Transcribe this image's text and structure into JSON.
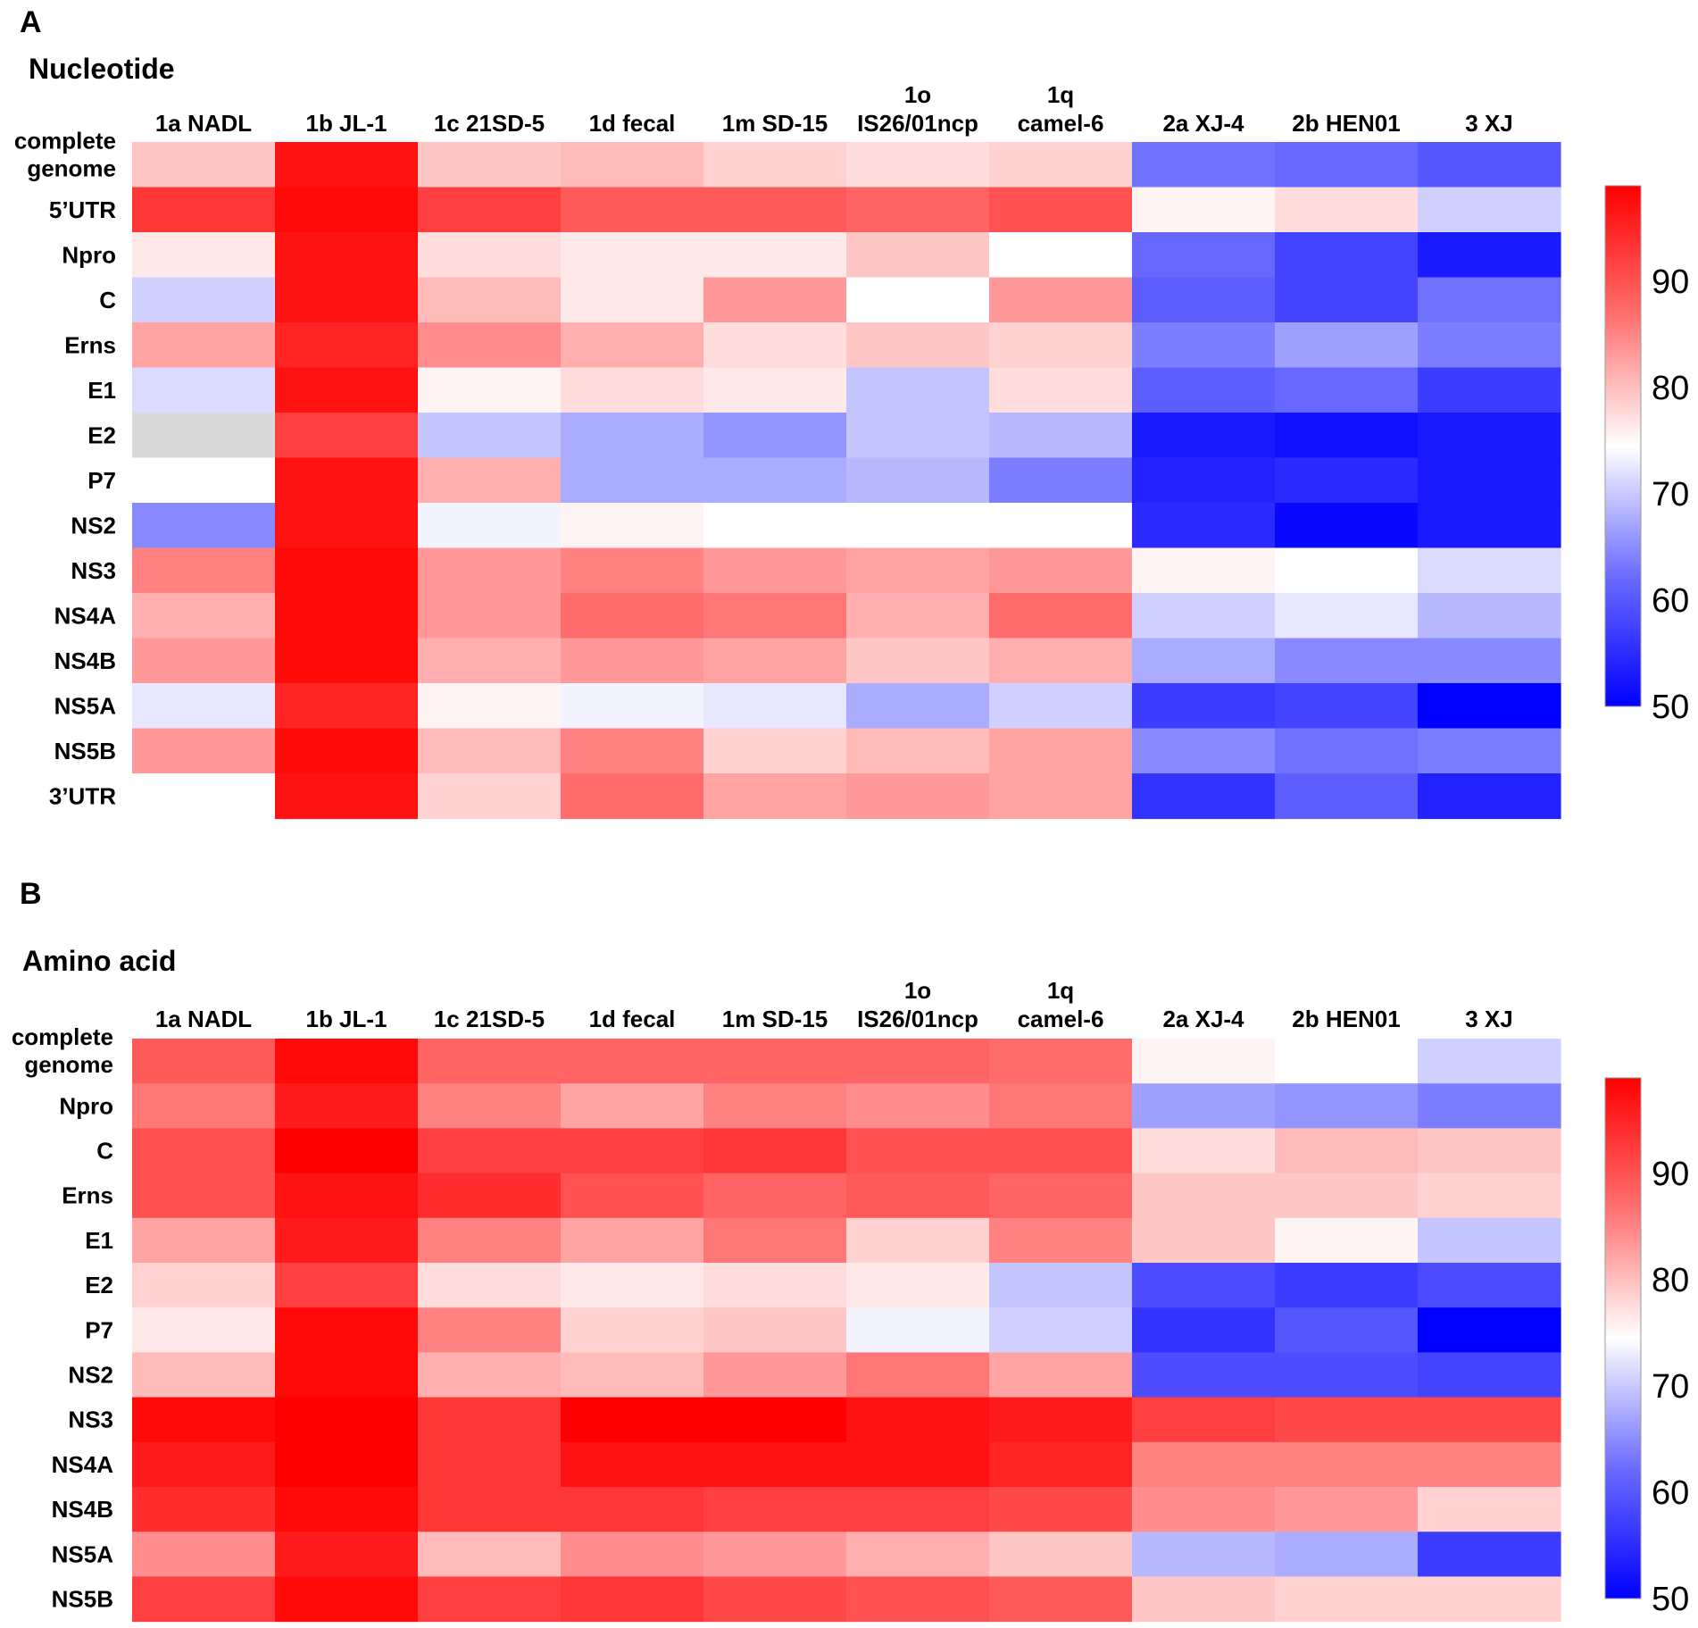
{
  "chart_data": [
    {
      "type": "heatmap",
      "panel_label": "A",
      "title": "Nucleotide",
      "columns": [
        {
          "lines": [
            "1a NADL"
          ]
        },
        {
          "lines": [
            "1b JL-1"
          ]
        },
        {
          "lines": [
            "1c 21SD-5"
          ]
        },
        {
          "lines": [
            "1d fecal"
          ]
        },
        {
          "lines": [
            "1m SD-15"
          ]
        },
        {
          "lines": [
            "1o",
            "IS26/01ncp"
          ]
        },
        {
          "lines": [
            "1q",
            "camel-6"
          ]
        },
        {
          "lines": [
            "2a XJ-4"
          ]
        },
        {
          "lines": [
            "2b HEN01"
          ]
        },
        {
          "lines": [
            "3 XJ"
          ]
        }
      ],
      "rows": [
        {
          "lines": [
            "complete",
            "genome"
          ]
        },
        {
          "lines": [
            "5’UTR"
          ]
        },
        {
          "lines": [
            "Npro"
          ]
        },
        {
          "lines": [
            "C"
          ]
        },
        {
          "lines": [
            "Erns"
          ]
        },
        {
          "lines": [
            "E1"
          ]
        },
        {
          "lines": [
            "E2"
          ]
        },
        {
          "lines": [
            "P7"
          ]
        },
        {
          "lines": [
            "NS2"
          ]
        },
        {
          "lines": [
            "NS3"
          ]
        },
        {
          "lines": [
            "NS4A"
          ]
        },
        {
          "lines": [
            "NS4B"
          ]
        },
        {
          "lines": [
            "NS5A"
          ]
        },
        {
          "lines": [
            "NS5B"
          ]
        },
        {
          "lines": [
            "3’UTR"
          ]
        }
      ],
      "values": [
        [
          80,
          98,
          80,
          81,
          79,
          78,
          79,
          63,
          62,
          60
        ],
        [
          94,
          99,
          93,
          90,
          90,
          89,
          91,
          76,
          78,
          71
        ],
        [
          77,
          98,
          78,
          77,
          77,
          80,
          75,
          62,
          58,
          53
        ],
        [
          71,
          98,
          81,
          77,
          84,
          75,
          84,
          61,
          58,
          63
        ],
        [
          83,
          96,
          85,
          82,
          78,
          80,
          79,
          64,
          67,
          64
        ],
        [
          72,
          98,
          76,
          78,
          77,
          70,
          78,
          61,
          62,
          57
        ],
        [
          null,
          93,
          70,
          68,
          66,
          70,
          69,
          53,
          52,
          53
        ],
        [
          75,
          98,
          82,
          68,
          68,
          69,
          64,
          54,
          55,
          53
        ],
        [
          65,
          98,
          74,
          76,
          75,
          75,
          75,
          55,
          51,
          53
        ],
        [
          86,
          99,
          84,
          86,
          84,
          83,
          84,
          76,
          75,
          72
        ],
        [
          82,
          99,
          84,
          88,
          87,
          82,
          88,
          71,
          73,
          69
        ],
        [
          84,
          99,
          82,
          84,
          83,
          80,
          82,
          68,
          65,
          65
        ],
        [
          73,
          96,
          76,
          74,
          73,
          68,
          71,
          57,
          58,
          50
        ],
        [
          84,
          99,
          81,
          86,
          79,
          81,
          83,
          65,
          63,
          64
        ],
        [
          75,
          98,
          79,
          88,
          83,
          84,
          83,
          56,
          61,
          54
        ]
      ],
      "colorbar": {
        "min": 50,
        "max": 100,
        "ticks": [
          90,
          80,
          70,
          60,
          50
        ]
      },
      "missing_color": "#d9d9d9"
    },
    {
      "type": "heatmap",
      "panel_label": "B",
      "title": "Amino acid",
      "columns": [
        {
          "lines": [
            "1a NADL"
          ]
        },
        {
          "lines": [
            "1b JL-1"
          ]
        },
        {
          "lines": [
            "1c 21SD-5"
          ]
        },
        {
          "lines": [
            "1d fecal"
          ]
        },
        {
          "lines": [
            "1m SD-15"
          ]
        },
        {
          "lines": [
            "1o",
            "IS26/01ncp"
          ]
        },
        {
          "lines": [
            "1q",
            "camel-6"
          ]
        },
        {
          "lines": [
            "2a XJ-4"
          ]
        },
        {
          "lines": [
            "2b HEN01"
          ]
        },
        {
          "lines": [
            "3 XJ"
          ]
        }
      ],
      "rows": [
        {
          "lines": [
            "complete",
            "genome"
          ]
        },
        {
          "lines": [
            "Npro"
          ]
        },
        {
          "lines": [
            "C"
          ]
        },
        {
          "lines": [
            "Erns"
          ]
        },
        {
          "lines": [
            "E1"
          ]
        },
        {
          "lines": [
            "E2"
          ]
        },
        {
          "lines": [
            "P7"
          ]
        },
        {
          "lines": [
            "NS2"
          ]
        },
        {
          "lines": [
            "NS3"
          ]
        },
        {
          "lines": [
            "NS4A"
          ]
        },
        {
          "lines": [
            "NS4B"
          ]
        },
        {
          "lines": [
            "NS5A"
          ]
        },
        {
          "lines": [
            "NS5B"
          ]
        }
      ],
      "values": [
        [
          90,
          99,
          89,
          89,
          89,
          89,
          88,
          76,
          75,
          71
        ],
        [
          87,
          97,
          86,
          83,
          86,
          85,
          87,
          67,
          66,
          64
        ],
        [
          91,
          100,
          93,
          93,
          94,
          91,
          91,
          78,
          81,
          80
        ],
        [
          91,
          98,
          95,
          91,
          89,
          90,
          89,
          80,
          80,
          79
        ],
        [
          83,
          97,
          86,
          83,
          87,
          79,
          86,
          80,
          76,
          70
        ],
        [
          79,
          93,
          78,
          77,
          78,
          77,
          70,
          59,
          57,
          59
        ],
        [
          77,
          99,
          86,
          79,
          80,
          74,
          71,
          56,
          60,
          50
        ],
        [
          81,
          99,
          82,
          81,
          84,
          87,
          83,
          59,
          59,
          58
        ],
        [
          99,
          100,
          94,
          100,
          100,
          98,
          97,
          93,
          92,
          92
        ],
        [
          97,
          100,
          94,
          98,
          98,
          98,
          96,
          86,
          86,
          86
        ],
        [
          95,
          99,
          94,
          94,
          93,
          93,
          92,
          85,
          84,
          79
        ],
        [
          85,
          97,
          81,
          85,
          84,
          82,
          80,
          69,
          68,
          57
        ],
        [
          93,
          99,
          93,
          94,
          92,
          91,
          90,
          80,
          79,
          79
        ]
      ],
      "colorbar": {
        "min": 50,
        "max": 100,
        "ticks": [
          90,
          80,
          70,
          60,
          50
        ]
      },
      "missing_color": "#d9d9d9"
    }
  ]
}
